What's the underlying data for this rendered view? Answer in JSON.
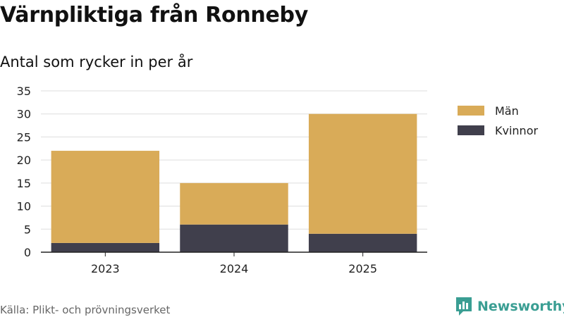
{
  "title": "Värnpliktiga från Ronneby",
  "subtitle": "Antal som rycker in per år",
  "source": "Källa: Plikt- och prövningsverket",
  "brand": {
    "name": "Newsworthy",
    "icon": "bar-chart-logo-icon",
    "color": "#3a9e93"
  },
  "chart_data": {
    "type": "bar",
    "stacked": true,
    "categories": [
      "2023",
      "2024",
      "2025"
    ],
    "series": [
      {
        "name": "Kvinnor",
        "values": [
          2,
          6,
          4
        ],
        "color": "#403f4c"
      },
      {
        "name": "Män",
        "values": [
          20,
          9,
          26
        ],
        "color": "#d9ab58"
      }
    ],
    "legend_order": [
      "Män",
      "Kvinnor"
    ],
    "ylim": [
      0,
      35
    ],
    "yticks": [
      0,
      5,
      10,
      15,
      20,
      25,
      30,
      35
    ],
    "grid": true,
    "legend_position": "right"
  }
}
